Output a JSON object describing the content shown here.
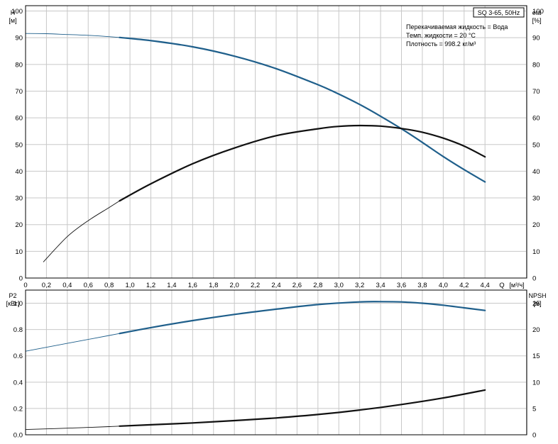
{
  "pump_label": "SQ 3-65, 50Hz",
  "info_lines": [
    "Перекачиваемая жидкость = Вода",
    "Темп. жидкости = 20 °C",
    "Плотность = 998.2 кг/м³"
  ],
  "colors": {
    "head": "#1f5f8b",
    "eta": "#111111",
    "p2": "#1f5f8b",
    "npsh": "#111111",
    "grid": "#c8c8c8"
  },
  "chart_data": [
    {
      "type": "line",
      "panel": "top",
      "x_axis": {
        "label": "Q",
        "unit": "[м³/ч]",
        "range": [
          0,
          4.8
        ],
        "ticks": [
          0,
          0.2,
          0.4,
          0.6,
          0.8,
          1.0,
          1.2,
          1.4,
          1.6,
          1.8,
          2.0,
          2.2,
          2.4,
          2.6,
          2.8,
          3.0,
          3.2,
          3.4,
          3.6,
          3.8,
          4.0,
          4.2,
          4.4
        ],
        "tick_labels": [
          "0",
          "0,2",
          "0,4",
          "0,6",
          "0,8",
          "1,0",
          "1,2",
          "1,4",
          "1,6",
          "1,8",
          "2,0",
          "2,2",
          "2,4",
          "2,6",
          "2,8",
          "3,0",
          "3,2",
          "3,4",
          "3,6",
          "3,8",
          "4,0",
          "4,2",
          "4,4"
        ]
      },
      "y_left": {
        "label": "H",
        "unit": "[м]",
        "range": [
          0,
          102
        ],
        "ticks": [
          0,
          10,
          20,
          30,
          40,
          50,
          60,
          70,
          80,
          90,
          100
        ]
      },
      "y_right": {
        "label": "eta",
        "unit": "[%]",
        "range": [
          0,
          102
        ],
        "ticks": [
          0,
          10,
          20,
          30,
          40,
          50,
          60,
          70,
          80,
          90,
          100
        ]
      },
      "grid": true,
      "series": [
        {
          "key": "head",
          "axis": "left",
          "thin_until": 0.9,
          "x": [
            0,
            0.2,
            0.4,
            0.6,
            0.8,
            0.9,
            1.2,
            1.6,
            2.0,
            2.4,
            2.8,
            3.0,
            3.2,
            3.4,
            3.6,
            3.8,
            4.0,
            4.2,
            4.4
          ],
          "y": [
            91.6,
            91.5,
            91.2,
            90.9,
            90.4,
            90.1,
            88.9,
            86.6,
            83.1,
            78.4,
            72.4,
            68.9,
            65.0,
            60.6,
            55.9,
            50.8,
            45.5,
            40.6,
            36.0
          ]
        },
        {
          "key": "eta",
          "axis": "right",
          "thin_until": 0.9,
          "x": [
            0.17,
            0.4,
            0.6,
            0.8,
            0.9,
            1.2,
            1.6,
            2.0,
            2.4,
            2.8,
            3.0,
            3.2,
            3.4,
            3.6,
            3.8,
            4.0,
            4.2,
            4.4
          ],
          "y": [
            6.0,
            15.5,
            21.5,
            26.4,
            28.9,
            35.3,
            42.8,
            48.7,
            53.3,
            55.9,
            56.8,
            57.1,
            56.9,
            56.0,
            54.6,
            52.4,
            49.4,
            45.4
          ]
        }
      ]
    },
    {
      "type": "line",
      "panel": "bottom",
      "x_axis": {
        "range": [
          0,
          4.8
        ]
      },
      "y_left": {
        "label": "P2",
        "unit": "[кВт]",
        "range": [
          0,
          1.1
        ],
        "ticks": [
          0,
          0.2,
          0.4,
          0.6,
          0.8,
          1.0
        ],
        "tick_labels": [
          "0.0",
          "0.2",
          "0.4",
          "0.6",
          "0.8",
          "1.0"
        ]
      },
      "y_right": {
        "label": "NPSH",
        "unit": "[м]",
        "range": [
          0,
          27.5
        ],
        "ticks": [
          0,
          5,
          10,
          15,
          20,
          25
        ]
      },
      "grid": true,
      "series": [
        {
          "key": "p2",
          "axis": "left",
          "thin_until": 0.9,
          "x": [
            0,
            0.4,
            0.8,
            0.9,
            1.2,
            1.6,
            2.0,
            2.4,
            2.8,
            3.2,
            3.4,
            3.6,
            3.8,
            4.0,
            4.2,
            4.4
          ],
          "y": [
            0.635,
            0.695,
            0.755,
            0.77,
            0.815,
            0.868,
            0.915,
            0.955,
            0.99,
            1.01,
            1.012,
            1.01,
            1.0,
            0.985,
            0.965,
            0.945
          ]
        },
        {
          "key": "npsh",
          "axis": "right",
          "thin_until": 0.9,
          "x": [
            0,
            0.4,
            0.8,
            0.9,
            1.2,
            1.6,
            2.0,
            2.4,
            2.8,
            3.2,
            3.6,
            4.0,
            4.4
          ],
          "y": [
            1.0,
            1.25,
            1.55,
            1.65,
            1.9,
            2.25,
            2.7,
            3.2,
            3.85,
            4.7,
            5.75,
            7.0,
            8.5
          ]
        }
      ]
    }
  ]
}
